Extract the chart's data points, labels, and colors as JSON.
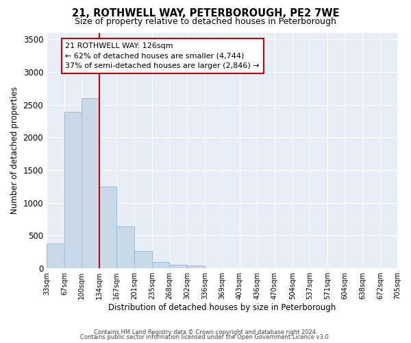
{
  "title": "21, ROTHWELL WAY, PETERBOROUGH, PE2 7WE",
  "subtitle": "Size of property relative to detached houses in Peterborough",
  "xlabel": "Distribution of detached houses by size in Peterborough",
  "ylabel": "Number of detached properties",
  "bar_color": "#c9d9ea",
  "bar_edge_color": "#a0bcd4",
  "bg_color": "#e8eef6",
  "fig_bg_color": "#ffffff",
  "grid_color": "#ffffff",
  "vline_color": "#cc0000",
  "vline_x_index": 3,
  "annotation_title": "21 ROTHWELL WAY: 126sqm",
  "annotation_line1": "← 62% of detached houses are smaller (4,744)",
  "annotation_line2": "37% of semi-detached houses are larger (2,846) →",
  "annotation_box_edge": "#cc0000",
  "bin_edges": [
    33,
    67,
    100,
    134,
    167,
    201,
    235,
    268,
    302,
    336,
    369,
    403,
    436,
    470,
    504,
    537,
    571,
    604,
    638,
    672,
    705
  ],
  "bin_labels": [
    "33sqm",
    "67sqm",
    "100sqm",
    "134sqm",
    "167sqm",
    "201sqm",
    "235sqm",
    "268sqm",
    "302sqm",
    "336sqm",
    "369sqm",
    "403sqm",
    "436sqm",
    "470sqm",
    "504sqm",
    "537sqm",
    "571sqm",
    "604sqm",
    "638sqm",
    "672sqm",
    "705sqm"
  ],
  "bar_heights": [
    380,
    2390,
    2600,
    1250,
    640,
    260,
    100,
    50,
    40,
    0,
    0,
    0,
    0,
    0,
    0,
    0,
    0,
    0,
    0,
    0
  ],
  "ylim": [
    0,
    3600
  ],
  "yticks": [
    0,
    500,
    1000,
    1500,
    2000,
    2500,
    3000,
    3500
  ],
  "footnote1": "Contains HM Land Registry data © Crown copyright and database right 2024.",
  "footnote2": "Contains public sector information licensed under the Open Government Licence v3.0."
}
